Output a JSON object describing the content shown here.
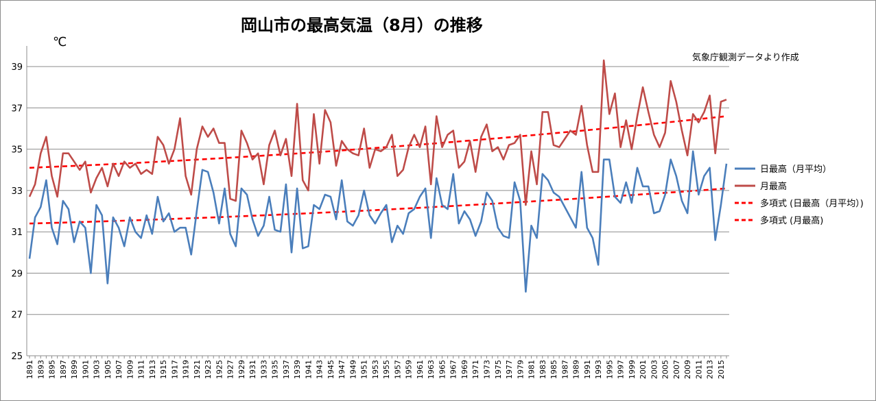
{
  "chart_data": {
    "type": "line",
    "title": "岡山市の最高気温（8月）の推移",
    "unit_label": "℃",
    "source_note": "気象庁観測データより作成",
    "ylim": [
      25,
      40
    ],
    "yticks": [
      25,
      27,
      29,
      31,
      33,
      35,
      37,
      39
    ],
    "x_start": 1891,
    "x_end": 2016,
    "xtick_labels": [
      "1891",
      "1893",
      "1895",
      "1897",
      "1899",
      "1901",
      "1903",
      "1905",
      "1907",
      "1909",
      "1911",
      "1913",
      "1915",
      "1917",
      "1919",
      "1921",
      "1923",
      "1925",
      "1927",
      "1929",
      "1931",
      "1933",
      "1935",
      "1937",
      "1939",
      "1941",
      "1943",
      "1945",
      "1947",
      "1949",
      "1951",
      "1953",
      "1955",
      "1957",
      "1959",
      "1961",
      "1963",
      "1965",
      "1967",
      "1969",
      "1971",
      "1973",
      "1975",
      "1977",
      "1979",
      "1981",
      "1983",
      "1985",
      "1987",
      "1989",
      "1991",
      "1993",
      "1995",
      "1997",
      "1999",
      "2001",
      "2003",
      "2005",
      "2007",
      "2009",
      "2011",
      "2013",
      "2015"
    ],
    "grid": "horizontal",
    "legend_position": "right",
    "series": [
      {
        "name": "日最高（月平均）",
        "color": "#4a7ebb",
        "style": "solid",
        "values": [
          29.7,
          31.7,
          32.2,
          33.5,
          31.2,
          30.4,
          32.5,
          32.1,
          30.5,
          31.5,
          31.2,
          29.0,
          32.3,
          31.8,
          28.5,
          31.7,
          31.2,
          30.3,
          31.7,
          31.0,
          30.7,
          31.8,
          30.9,
          32.7,
          31.5,
          31.9,
          31.0,
          31.2,
          31.2,
          29.9,
          32.0,
          34.0,
          33.9,
          32.9,
          31.4,
          33.1,
          30.9,
          30.3,
          33.1,
          32.8,
          31.6,
          30.8,
          31.3,
          32.7,
          31.1,
          31.0,
          33.3,
          30.0,
          33.1,
          30.2,
          30.3,
          32.3,
          32.1,
          32.8,
          32.7,
          31.6,
          33.5,
          31.5,
          31.3,
          31.8,
          33.0,
          31.8,
          31.4,
          31.9,
          32.3,
          30.5,
          31.3,
          30.9,
          31.9,
          32.1,
          32.7,
          33.1,
          30.7,
          33.6,
          32.3,
          32.1,
          33.8,
          31.4,
          32.0,
          31.6,
          30.8,
          31.5,
          32.9,
          32.5,
          31.2,
          30.8,
          30.7,
          33.4,
          32.5,
          28.1,
          31.3,
          30.7,
          33.8,
          33.5,
          32.9,
          32.7,
          32.2,
          31.7,
          31.2,
          33.9,
          31.2,
          30.7,
          29.4,
          34.5,
          34.5,
          32.7,
          32.4,
          33.4,
          32.4,
          34.1,
          33.2,
          33.2,
          31.9,
          32.0,
          32.8,
          34.5,
          33.7,
          32.5,
          31.9,
          34.9,
          32.8,
          33.7,
          34.1,
          30.6,
          32.3,
          34.3
        ]
      },
      {
        "name": "月最高",
        "color": "#be4b48",
        "style": "solid",
        "values": [
          32.7,
          33.3,
          34.8,
          35.6,
          33.7,
          32.7,
          34.8,
          34.8,
          34.4,
          34.0,
          34.4,
          32.9,
          33.6,
          34.1,
          33.2,
          34.3,
          33.7,
          34.4,
          34.1,
          34.3,
          33.8,
          34.0,
          33.8,
          35.6,
          35.2,
          34.3,
          35.0,
          36.5,
          33.7,
          32.8,
          35.0,
          36.1,
          35.6,
          36.0,
          35.3,
          35.3,
          32.6,
          32.5,
          35.9,
          35.3,
          34.5,
          34.8,
          33.3,
          35.2,
          35.9,
          34.7,
          35.5,
          33.7,
          37.2,
          33.5,
          33.0,
          36.7,
          34.3,
          36.9,
          36.3,
          34.2,
          35.4,
          35.0,
          34.8,
          34.7,
          36.0,
          34.1,
          35.0,
          34.9,
          35.1,
          35.7,
          33.7,
          34.0,
          35.1,
          35.7,
          35.1,
          36.1,
          33.3,
          36.6,
          35.1,
          35.7,
          35.9,
          34.1,
          34.4,
          35.4,
          33.9,
          35.6,
          36.2,
          34.9,
          35.1,
          34.5,
          35.2,
          35.3,
          35.7,
          32.3,
          34.9,
          33.3,
          36.8,
          36.8,
          35.2,
          35.1,
          35.5,
          35.9,
          35.7,
          37.1,
          35.2,
          33.9,
          33.9,
          39.3,
          36.7,
          37.7,
          35.1,
          36.4,
          35.0,
          36.6,
          38.0,
          36.8,
          35.7,
          35.1,
          35.8,
          38.3,
          37.3,
          35.9,
          34.7,
          36.7,
          36.3,
          36.8,
          37.6,
          34.8,
          37.3,
          37.4
        ]
      }
    ],
    "trendlines": [
      {
        "name": "多項式 (日最高（月平均）)",
        "color": "#ff0000",
        "style": "dashed",
        "fit": "polynomial",
        "start": 31.4,
        "end": 33.1
      },
      {
        "name": "多項式 (月最高)",
        "color": "#ff0000",
        "style": "dashed",
        "fit": "polynomial",
        "start": 34.1,
        "end": 36.6
      }
    ]
  }
}
